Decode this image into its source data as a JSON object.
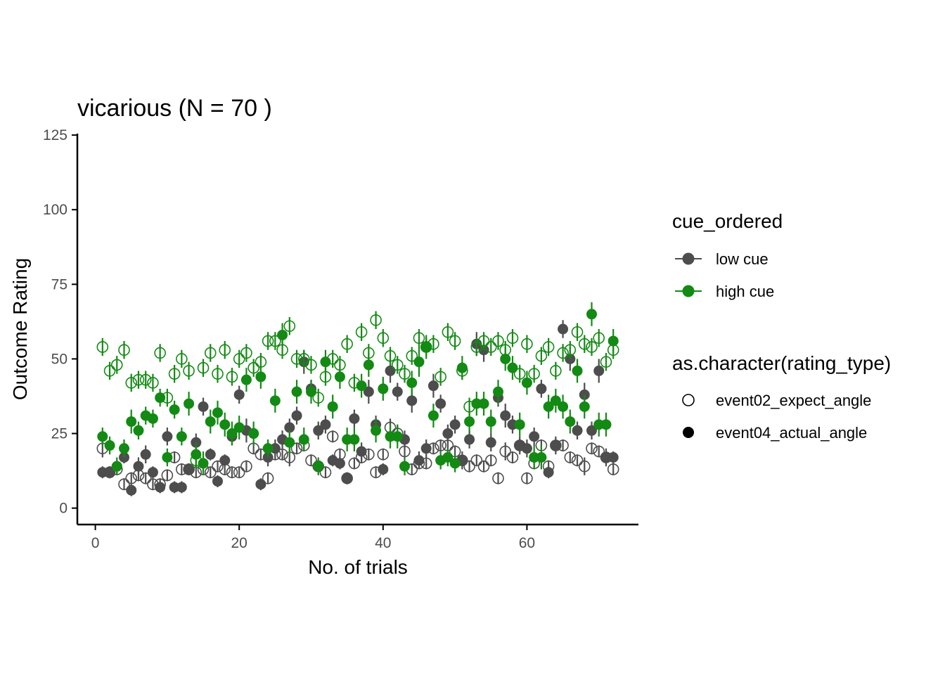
{
  "chart_data": {
    "type": "scatter",
    "title": "vicarious (N =  70 )",
    "xlabel": "No. of trials",
    "ylabel": "Outcome Rating",
    "xlim": [
      -2.5,
      75.5
    ],
    "ylim": [
      -5.5,
      125.5
    ],
    "xticks": [
      0,
      20,
      40,
      60
    ],
    "yticks": [
      0,
      25,
      50,
      75,
      100,
      125
    ],
    "grid": false,
    "legend_position": "right",
    "legend": {
      "cue_title": "cue_ordered",
      "cue_items": [
        {
          "label": "low cue",
          "color": "#4d4d4d"
        },
        {
          "label": "high cue",
          "color": "#138a13"
        }
      ],
      "type_title": "as.character(rating_type)",
      "type_items": [
        {
          "label": "event02_expect_angle",
          "shape": "open"
        },
        {
          "label": "event04_actual_angle",
          "shape": "filled"
        }
      ]
    },
    "colors": {
      "low cue": "#4d4d4d",
      "high cue": "#138a13"
    },
    "x": [
      1,
      2,
      3,
      4,
      5,
      6,
      7,
      8,
      9,
      10,
      11,
      12,
      13,
      14,
      15,
      16,
      17,
      18,
      19,
      20,
      21,
      22,
      23,
      24,
      25,
      26,
      27,
      28,
      29,
      30,
      31,
      32,
      33,
      34,
      35,
      36,
      37,
      38,
      39,
      40,
      41,
      42,
      43,
      44,
      45,
      46,
      47,
      48,
      49,
      50,
      51,
      52,
      53,
      54,
      55,
      56,
      57,
      58,
      59,
      60,
      61,
      62,
      63,
      64,
      65,
      66,
      67,
      68,
      69,
      70,
      71,
      72
    ],
    "series": [
      {
        "cue": "low cue",
        "rating_type": "event02_expect_angle",
        "shape": "open",
        "values": [
          20,
          12,
          13,
          8,
          10,
          11,
          10,
          8,
          8,
          11,
          17,
          13,
          13,
          12,
          13,
          12,
          14,
          13,
          12,
          12,
          14,
          20,
          18,
          10,
          18,
          18,
          17,
          20,
          21,
          16,
          14,
          12,
          24,
          18,
          10,
          15,
          17,
          18,
          12,
          18,
          27,
          25,
          19,
          13,
          15,
          15,
          20,
          21,
          21,
          19,
          16,
          14,
          16,
          14,
          16,
          10,
          19,
          17,
          21,
          10,
          15,
          21,
          14,
          21,
          21,
          17,
          16,
          14,
          20,
          19,
          17,
          13
        ],
        "errors": [
          3,
          2,
          2,
          2,
          2,
          2,
          2,
          2,
          2,
          2,
          2,
          2,
          2,
          2,
          2,
          2,
          2,
          2,
          2,
          2,
          2,
          2,
          2,
          2,
          2,
          2,
          3,
          2,
          2,
          2,
          2,
          2,
          2,
          2,
          2,
          2,
          2,
          2,
          2,
          2,
          3,
          3,
          2,
          2,
          2,
          2,
          2,
          2,
          2,
          2,
          2,
          2,
          2,
          2,
          2,
          2,
          3,
          2,
          2,
          2,
          2,
          2,
          2,
          2,
          2,
          2,
          2,
          3,
          2,
          2,
          2,
          2
        ]
      },
      {
        "cue": "low cue",
        "rating_type": "event04_actual_angle",
        "shape": "filled",
        "values": [
          12,
          12,
          14,
          17,
          6,
          14,
          18,
          12,
          7,
          24,
          7,
          7,
          13,
          22,
          34,
          18,
          9,
          16,
          24,
          38,
          26,
          25,
          8,
          17,
          20,
          23,
          27,
          31,
          49,
          40,
          26,
          28,
          16,
          15,
          10,
          30,
          19,
          39,
          28,
          13,
          46,
          39,
          23,
          36,
          16,
          20,
          41,
          35,
          25,
          28,
          16,
          23,
          55,
          53,
          22,
          37,
          31,
          28,
          21,
          20,
          24,
          40,
          12,
          21,
          60,
          50,
          26,
          38,
          26,
          46,
          17,
          17
        ],
        "errors": [
          2,
          2,
          2,
          2,
          2,
          3,
          3,
          2,
          2,
          3,
          2,
          2,
          2,
          3,
          3,
          2,
          2,
          2,
          3,
          3,
          4,
          2,
          2,
          3,
          3,
          3,
          3,
          3,
          4,
          3,
          3,
          3,
          2,
          2,
          2,
          3,
          3,
          4,
          3,
          2,
          4,
          3,
          3,
          4,
          3,
          3,
          4,
          3,
          3,
          3,
          3,
          3,
          4,
          4,
          3,
          3,
          4,
          3,
          3,
          3,
          3,
          3,
          2,
          3,
          3,
          4,
          3,
          4,
          3,
          4,
          3,
          2
        ]
      },
      {
        "cue": "high cue",
        "rating_type": "event02_expect_angle",
        "shape": "open",
        "values": [
          54,
          46,
          48,
          53,
          42,
          43,
          43,
          42,
          52,
          37,
          45,
          50,
          46,
          16,
          47,
          52,
          45,
          53,
          44,
          50,
          52,
          47,
          49,
          56,
          56,
          53,
          61,
          50,
          50,
          48,
          37,
          44,
          50,
          48,
          55,
          42,
          59,
          52,
          63,
          57,
          51,
          48,
          45,
          51,
          57,
          54,
          55,
          44,
          59,
          56,
          46,
          34,
          54,
          56,
          54,
          56,
          53,
          57,
          45,
          55,
          45,
          51,
          54,
          46,
          52,
          53,
          59,
          55,
          54,
          57,
          49,
          53
        ],
        "errors": [
          3,
          3,
          3,
          3,
          3,
          3,
          3,
          3,
          3,
          3,
          3,
          3,
          3,
          3,
          3,
          3,
          3,
          3,
          3,
          3,
          3,
          3,
          3,
          3,
          3,
          3,
          3,
          3,
          3,
          3,
          3,
          3,
          3,
          3,
          3,
          3,
          3,
          3,
          3,
          3,
          3,
          3,
          3,
          3,
          3,
          3,
          3,
          3,
          3,
          3,
          3,
          3,
          3,
          3,
          3,
          3,
          3,
          3,
          3,
          3,
          3,
          3,
          3,
          3,
          3,
          3,
          3,
          3,
          3,
          3,
          3,
          3
        ]
      },
      {
        "cue": "high cue",
        "rating_type": "event04_actual_angle",
        "shape": "filled",
        "values": [
          24,
          21,
          14,
          20,
          29,
          26,
          31,
          30,
          37,
          17,
          33,
          24,
          35,
          18,
          15,
          29,
          32,
          28,
          25,
          27,
          43,
          25,
          44,
          20,
          36,
          58,
          22,
          39,
          23,
          39,
          14,
          49,
          34,
          44,
          23,
          23,
          41,
          48,
          26,
          40,
          24,
          24,
          14,
          42,
          49,
          54,
          31,
          16,
          17,
          15,
          47,
          29,
          35,
          35,
          29,
          39,
          50,
          47,
          28,
          42,
          17,
          17,
          34,
          36,
          34,
          29,
          46,
          34,
          65,
          28,
          28,
          56
        ],
        "errors": [
          3,
          3,
          3,
          3,
          4,
          3,
          3,
          3,
          3,
          3,
          3,
          3,
          4,
          4,
          4,
          4,
          4,
          4,
          4,
          4,
          4,
          4,
          4,
          3,
          4,
          4,
          4,
          4,
          4,
          4,
          3,
          4,
          4,
          4,
          4,
          4,
          4,
          4,
          4,
          4,
          4,
          4,
          3,
          4,
          5,
          4,
          4,
          3,
          3,
          3,
          4,
          4,
          4,
          4,
          4,
          4,
          4,
          4,
          4,
          4,
          4,
          4,
          4,
          4,
          4,
          4,
          4,
          4,
          4,
          4,
          4,
          4
        ]
      }
    ]
  }
}
